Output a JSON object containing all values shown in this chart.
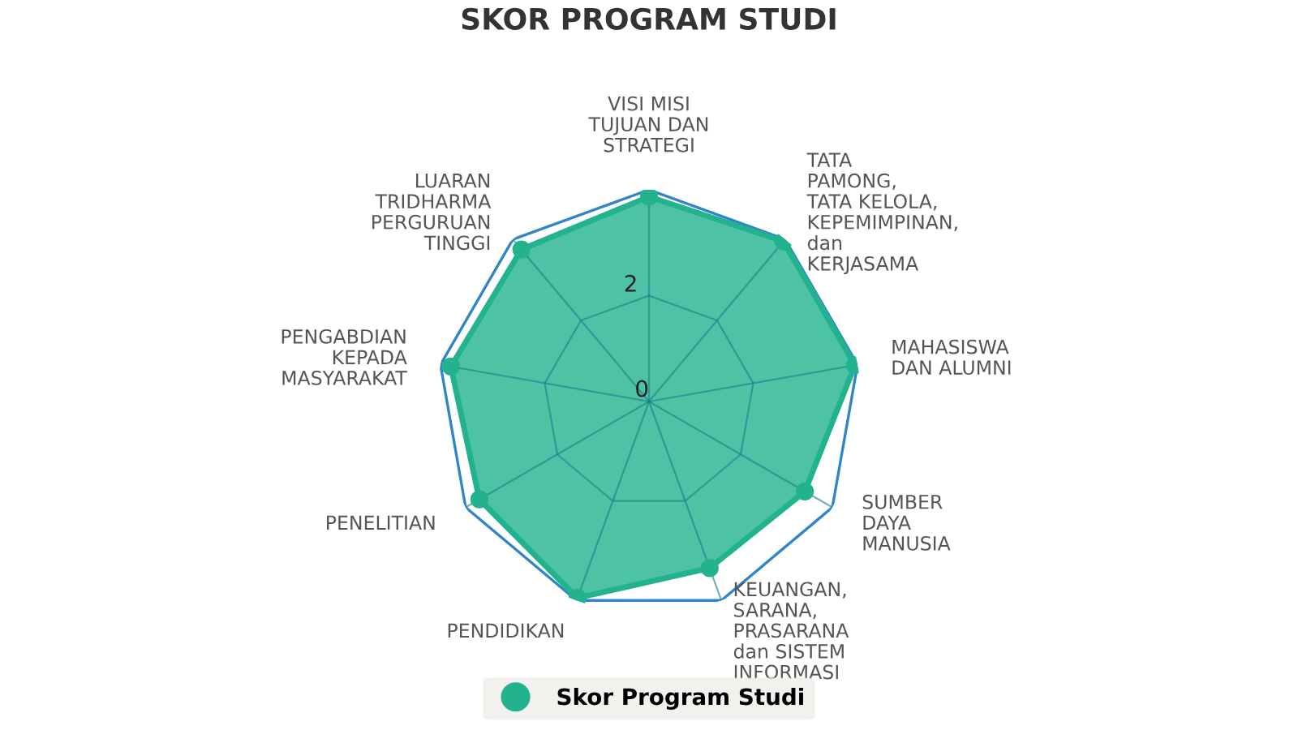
{
  "chart_data": {
    "type": "radar",
    "title": "SKOR PROGRAM STUDI",
    "categories": [
      "VISI MISI\nTUJUAN DAN\nSTRATEGI",
      "TATA\nPAMONG,\nTATA KELOLA,\nKEPEMIMPINAN,\ndan\nKERJASAMA",
      "MAHASISWA\nDAN ALUMNI",
      "SUMBER\nDAYA\nMANUSIA",
      "KEUANGAN,\nSARANA,\nPRASARANA\ndan SISTEM\nINFORMASI",
      "PENDIDIKAN",
      "PENELITIAN",
      "PENGABDIAN\nKEPADA\nMASYARAKAT",
      "LUARAN\nTRIDHARMA\nPERGURUAN\nTINGGI"
    ],
    "series": [
      {
        "name": "Skor Program Studi",
        "color": "#22b38e",
        "values": [
          3.87,
          3.95,
          3.95,
          3.4,
          3.35,
          3.95,
          3.7,
          3.8,
          3.75
        ]
      }
    ],
    "ylim": [
      0,
      4
    ],
    "yticks": [
      0,
      2
    ],
    "grid": true,
    "legend": "bottom",
    "marker": "circle"
  }
}
